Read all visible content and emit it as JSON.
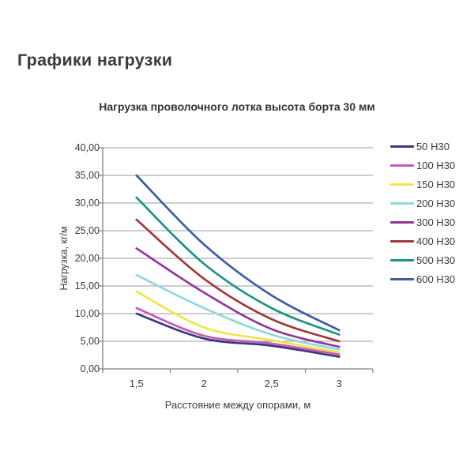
{
  "page": {
    "heading": "Графики нагрузки"
  },
  "chart_data": {
    "type": "line",
    "title": "Нагрузка проволочного лотка высота борта 30 мм",
    "xlabel": "Расстояние между опорами, м",
    "ylabel": "Нагрузка, кг/м",
    "x": [
      1.5,
      2,
      2.5,
      3
    ],
    "x_tick_labels": [
      "1,5",
      "2",
      "2,5",
      "3"
    ],
    "y_tick_labels": [
      "0,00",
      "5,00",
      "10,00",
      "15,00",
      "20,00",
      "25,00",
      "30,00",
      "35,00",
      "40,00"
    ],
    "ylim": [
      0,
      40
    ],
    "y_step": 5,
    "grid": true,
    "line_smoothing": true,
    "legend_position": "right",
    "series": [
      {
        "name": "50 Н30",
        "color": "#3A3A7E",
        "values": [
          10.0,
          5.5,
          4.2,
          2.2
        ]
      },
      {
        "name": "100 Н30",
        "color": "#C45CB8",
        "values": [
          11.0,
          6.0,
          4.6,
          2.6
        ]
      },
      {
        "name": "150 Н30",
        "color": "#EEE648",
        "values": [
          14.0,
          7.5,
          5.2,
          3.0
        ]
      },
      {
        "name": "200 Н30",
        "color": "#8FD9DC",
        "values": [
          17.0,
          11.0,
          6.2,
          3.5
        ]
      },
      {
        "name": "300 Н30",
        "color": "#92389A",
        "values": [
          21.8,
          13.8,
          7.2,
          4.0
        ]
      },
      {
        "name": "400 Н30",
        "color": "#9E3A3A",
        "values": [
          27.0,
          16.3,
          9.0,
          5.0
        ]
      },
      {
        "name": "500 Н30",
        "color": "#1D9384",
        "values": [
          31.0,
          19.0,
          11.0,
          6.2
        ]
      },
      {
        "name": "600 Н30",
        "color": "#3F5CAA",
        "values": [
          35.0,
          22.5,
          13.3,
          7.0
        ]
      }
    ],
    "colors": {
      "grid": "#9B9B9B",
      "axis": "#7F7F7F",
      "text": "#3A3A3A"
    }
  }
}
